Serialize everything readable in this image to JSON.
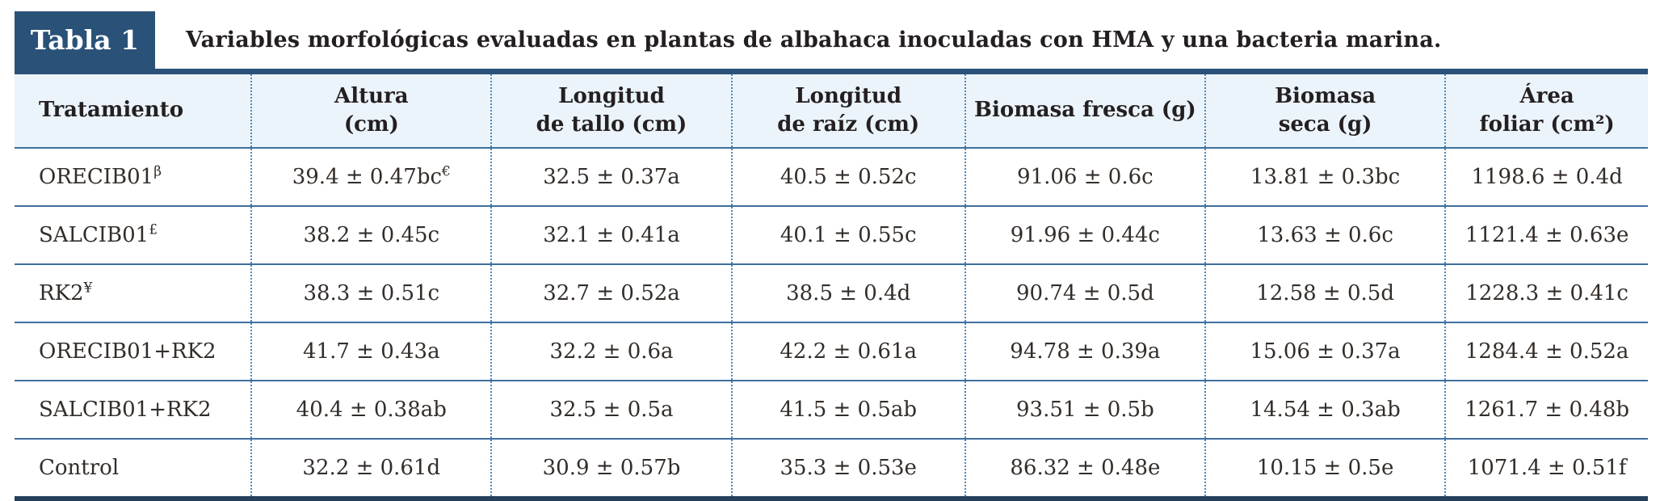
{
  "badge": {
    "label": "Tabla 1"
  },
  "caption": "Variables morfológicas evaluadas en plantas de albahaca inoculadas con HMA y una bacteria marina.",
  "colors": {
    "accent_dark_blue": "#2a5278",
    "header_background": "#ebf4fb",
    "row_rule_blue": "#3e6f9e",
    "dotted_rule_blue": "#4d86b6",
    "bottom_rule_navy": "#24405a",
    "text_dark": "#332d29"
  },
  "columns": [
    {
      "line1": "Tratamiento",
      "line2": ""
    },
    {
      "line1": "Altura",
      "line2": "(cm)"
    },
    {
      "line1": "Longitud",
      "line2": "de tallo (cm)"
    },
    {
      "line1": "Longitud",
      "line2": "de raíz (cm)"
    },
    {
      "line1": "Biomasa fresca (g)",
      "line2": ""
    },
    {
      "line1": "Biomasa",
      "line2": "seca (g)"
    },
    {
      "line1": "Área",
      "line2": "foliar (cm²)"
    }
  ],
  "rows": [
    {
      "treatment": {
        "text": "ORECIB01",
        "sup": "β"
      },
      "values": [
        {
          "text": "39.4 ± 0.47bc",
          "sup": "€"
        },
        {
          "text": "32.5 ± 0.37a",
          "sup": ""
        },
        {
          "text": "40.5 ± 0.52c",
          "sup": ""
        },
        {
          "text": "91.06 ± 0.6c",
          "sup": ""
        },
        {
          "text": "13.81 ± 0.3bc",
          "sup": ""
        },
        {
          "text": "1198.6 ± 0.4d",
          "sup": ""
        }
      ]
    },
    {
      "treatment": {
        "text": "SALCIB01",
        "sup": "£"
      },
      "values": [
        {
          "text": "38.2 ± 0.45c",
          "sup": ""
        },
        {
          "text": "32.1 ± 0.41a",
          "sup": ""
        },
        {
          "text": "40.1 ± 0.55c",
          "sup": ""
        },
        {
          "text": "91.96 ± 0.44c",
          "sup": ""
        },
        {
          "text": "13.63 ± 0.6c",
          "sup": ""
        },
        {
          "text": "1121.4 ± 0.63e",
          "sup": ""
        }
      ]
    },
    {
      "treatment": {
        "text": "RK2",
        "sup": "¥"
      },
      "values": [
        {
          "text": "38.3 ± 0.51c",
          "sup": ""
        },
        {
          "text": "32.7 ± 0.52a",
          "sup": ""
        },
        {
          "text": "38.5 ± 0.4d",
          "sup": ""
        },
        {
          "text": "90.74 ± 0.5d",
          "sup": ""
        },
        {
          "text": "12.58 ± 0.5d",
          "sup": ""
        },
        {
          "text": "1228.3 ± 0.41c",
          "sup": ""
        }
      ]
    },
    {
      "treatment": {
        "text": "ORECIB01+RK2",
        "sup": ""
      },
      "values": [
        {
          "text": "41.7 ± 0.43a",
          "sup": ""
        },
        {
          "text": "32.2 ± 0.6a",
          "sup": ""
        },
        {
          "text": "42.2 ± 0.61a",
          "sup": ""
        },
        {
          "text": "94.78 ± 0.39a",
          "sup": ""
        },
        {
          "text": "15.06 ± 0.37a",
          "sup": ""
        },
        {
          "text": "1284.4 ± 0.52a",
          "sup": ""
        }
      ]
    },
    {
      "treatment": {
        "text": "SALCIB01+RK2",
        "sup": ""
      },
      "values": [
        {
          "text": "40.4 ± 0.38ab",
          "sup": ""
        },
        {
          "text": "32.5 ± 0.5a",
          "sup": ""
        },
        {
          "text": "41.5 ± 0.5ab",
          "sup": ""
        },
        {
          "text": "93.51 ± 0.5b",
          "sup": ""
        },
        {
          "text": "14.54 ± 0.3ab",
          "sup": ""
        },
        {
          "text": "1261.7 ± 0.48b",
          "sup": ""
        }
      ]
    },
    {
      "treatment": {
        "text": "Control",
        "sup": ""
      },
      "values": [
        {
          "text": "32.2 ± 0.61d",
          "sup": ""
        },
        {
          "text": "30.9 ± 0.57b",
          "sup": ""
        },
        {
          "text": "35.3 ± 0.53e",
          "sup": ""
        },
        {
          "text": "86.32 ± 0.48e",
          "sup": ""
        },
        {
          "text": "10.15 ± 0.5e",
          "sup": ""
        },
        {
          "text": "1071.4 ± 0.51f",
          "sup": ""
        }
      ]
    }
  ]
}
